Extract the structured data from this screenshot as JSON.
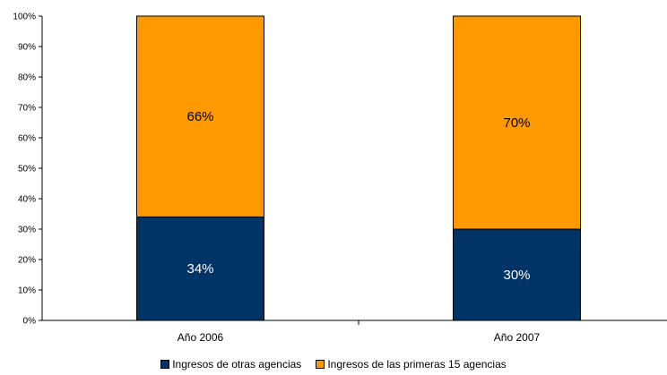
{
  "chart_data": {
    "type": "bar",
    "stacked": true,
    "percent": true,
    "categories": [
      "Año 2006",
      "Año 2007"
    ],
    "series": [
      {
        "name": "Ingresos de otras agencias",
        "values": [
          34,
          30
        ],
        "labels": [
          "34%",
          "30%"
        ],
        "color": "#003366",
        "label_color": "#ffffff"
      },
      {
        "name": "Ingresos de las primeras 15 agencias",
        "values": [
          66,
          70
        ],
        "labels": [
          "66%",
          "70%"
        ],
        "color": "#FF9900",
        "label_color": "#000000"
      }
    ],
    "ylim": [
      0,
      100
    ],
    "yticks": [
      "0%",
      "10%",
      "20%",
      "30%",
      "40%",
      "50%",
      "60%",
      "70%",
      "80%",
      "90%",
      "100%"
    ],
    "grid": false,
    "legend": "bottom"
  }
}
